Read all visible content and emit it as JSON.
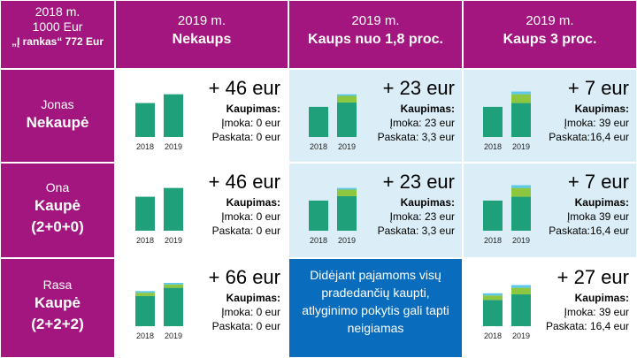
{
  "corner": {
    "line1": "2018 m.",
    "line2": "1000 Eur",
    "line3": "„Į rankas“ 772 Eur"
  },
  "columns": [
    {
      "year": "2019 m.",
      "title": "Nekaups"
    },
    {
      "year": "2019 m.",
      "title": "Kaups nuo 1,8 proc."
    },
    {
      "year": "2019 m.",
      "title": "Kaups 3 proc."
    }
  ],
  "rows": [
    {
      "name": "Jonas",
      "status": "Nekaupė",
      "plan": ""
    },
    {
      "name": "Ona",
      "status": "Kaupė",
      "plan": "(2+0+0)"
    },
    {
      "name": "Rasa",
      "status": "Kaupė",
      "plan": "(2+2+2)"
    }
  ],
  "kaupimas_label": "Kaupimas:",
  "cells": [
    [
      {
        "amount": "+ 46 eur",
        "imoka": "Įmoka: 0 eur",
        "paskata": "Paskata: 0 eur",
        "chart_data": {
          "type": "bar",
          "categories": [
            "2018",
            "2019"
          ],
          "series": [
            {
              "color": "#1fa07a",
              "values": [
                0.62,
                0.78
              ]
            },
            {
              "color": "#8dc63f",
              "values": [
                0,
                0
              ]
            },
            {
              "color": "#5bc8e8",
              "values": [
                0,
                0
              ]
            }
          ]
        }
      },
      {
        "amount": "+ 23 eur",
        "imoka": "Įmoka: 23 eur",
        "paskata": "Paskata: 3,3 eur",
        "chart_data": {
          "type": "bar",
          "categories": [
            "2018",
            "2019"
          ],
          "series": [
            {
              "color": "#1fa07a",
              "values": [
                0.55,
                0.63
              ]
            },
            {
              "color": "#8dc63f",
              "values": [
                0,
                0.12
              ]
            },
            {
              "color": "#5bc8e8",
              "values": [
                0,
                0.03
              ]
            }
          ]
        }
      },
      {
        "amount": "+ 7 eur",
        "imoka": "Įmoka: 39 eur",
        "paskata": "Paskata:16,4 eur",
        "chart_data": {
          "type": "bar",
          "categories": [
            "2018",
            "2019"
          ],
          "series": [
            {
              "color": "#1fa07a",
              "values": [
                0.55,
                0.62
              ]
            },
            {
              "color": "#8dc63f",
              "values": [
                0,
                0.16
              ]
            },
            {
              "color": "#5bc8e8",
              "values": [
                0,
                0.05
              ]
            }
          ]
        }
      }
    ],
    [
      {
        "amount": "+ 46 eur",
        "imoka": "Įmoka: 0 eur",
        "paskata": "Paskata: 0 eur",
        "chart_data": {
          "type": "bar",
          "categories": [
            "2018",
            "2019"
          ],
          "series": [
            {
              "color": "#1fa07a",
              "values": [
                0.62,
                0.78
              ]
            },
            {
              "color": "#8dc63f",
              "values": [
                0,
                0
              ]
            },
            {
              "color": "#5bc8e8",
              "values": [
                0,
                0
              ]
            }
          ]
        }
      },
      {
        "amount": "+ 23 eur",
        "imoka": "Įmoka: 23 eur",
        "paskata": "Paskata: 3,3 eur",
        "chart_data": {
          "type": "bar",
          "categories": [
            "2018",
            "2019"
          ],
          "series": [
            {
              "color": "#1fa07a",
              "values": [
                0.55,
                0.63
              ]
            },
            {
              "color": "#8dc63f",
              "values": [
                0,
                0.12
              ]
            },
            {
              "color": "#5bc8e8",
              "values": [
                0,
                0.03
              ]
            }
          ]
        }
      },
      {
        "amount": "+ 7 eur",
        "imoka": "Įmoka 39 eur",
        "paskata": "Paskata:16,4 eur",
        "chart_data": {
          "type": "bar",
          "categories": [
            "2018",
            "2019"
          ],
          "series": [
            {
              "color": "#1fa07a",
              "values": [
                0.55,
                0.62
              ]
            },
            {
              "color": "#8dc63f",
              "values": [
                0,
                0.16
              ]
            },
            {
              "color": "#5bc8e8",
              "values": [
                0,
                0.05
              ]
            }
          ]
        }
      }
    ],
    [
      {
        "amount": "+ 66 eur",
        "imoka": "Įmoka: 0 eur",
        "paskata": "Paskata: 0 eur",
        "chart_data": {
          "type": "bar",
          "categories": [
            "2018",
            "2019"
          ],
          "series": [
            {
              "color": "#1fa07a",
              "values": [
                0.55,
                0.7
              ]
            },
            {
              "color": "#8dc63f",
              "values": [
                0.06,
                0.06
              ]
            },
            {
              "color": "#5bc8e8",
              "values": [
                0.03,
                0.03
              ]
            }
          ]
        }
      },
      {
        "note": "Didėjant pajamoms visų pradedančių kaupti, atlyginimo pokytis gali tapti neigiamas"
      },
      {
        "amount": "+ 27 eur",
        "imoka": "Įmoka: 39 eur",
        "paskata": "Paskata: 16,4 eur",
        "chart_data": {
          "type": "bar",
          "categories": [
            "2018",
            "2019"
          ],
          "series": [
            {
              "color": "#1fa07a",
              "values": [
                0.48,
                0.58
              ]
            },
            {
              "color": "#8dc63f",
              "values": [
                0.08,
                0.12
              ]
            },
            {
              "color": "#5bc8e8",
              "values": [
                0.04,
                0.05
              ]
            }
          ]
        }
      }
    ]
  ]
}
